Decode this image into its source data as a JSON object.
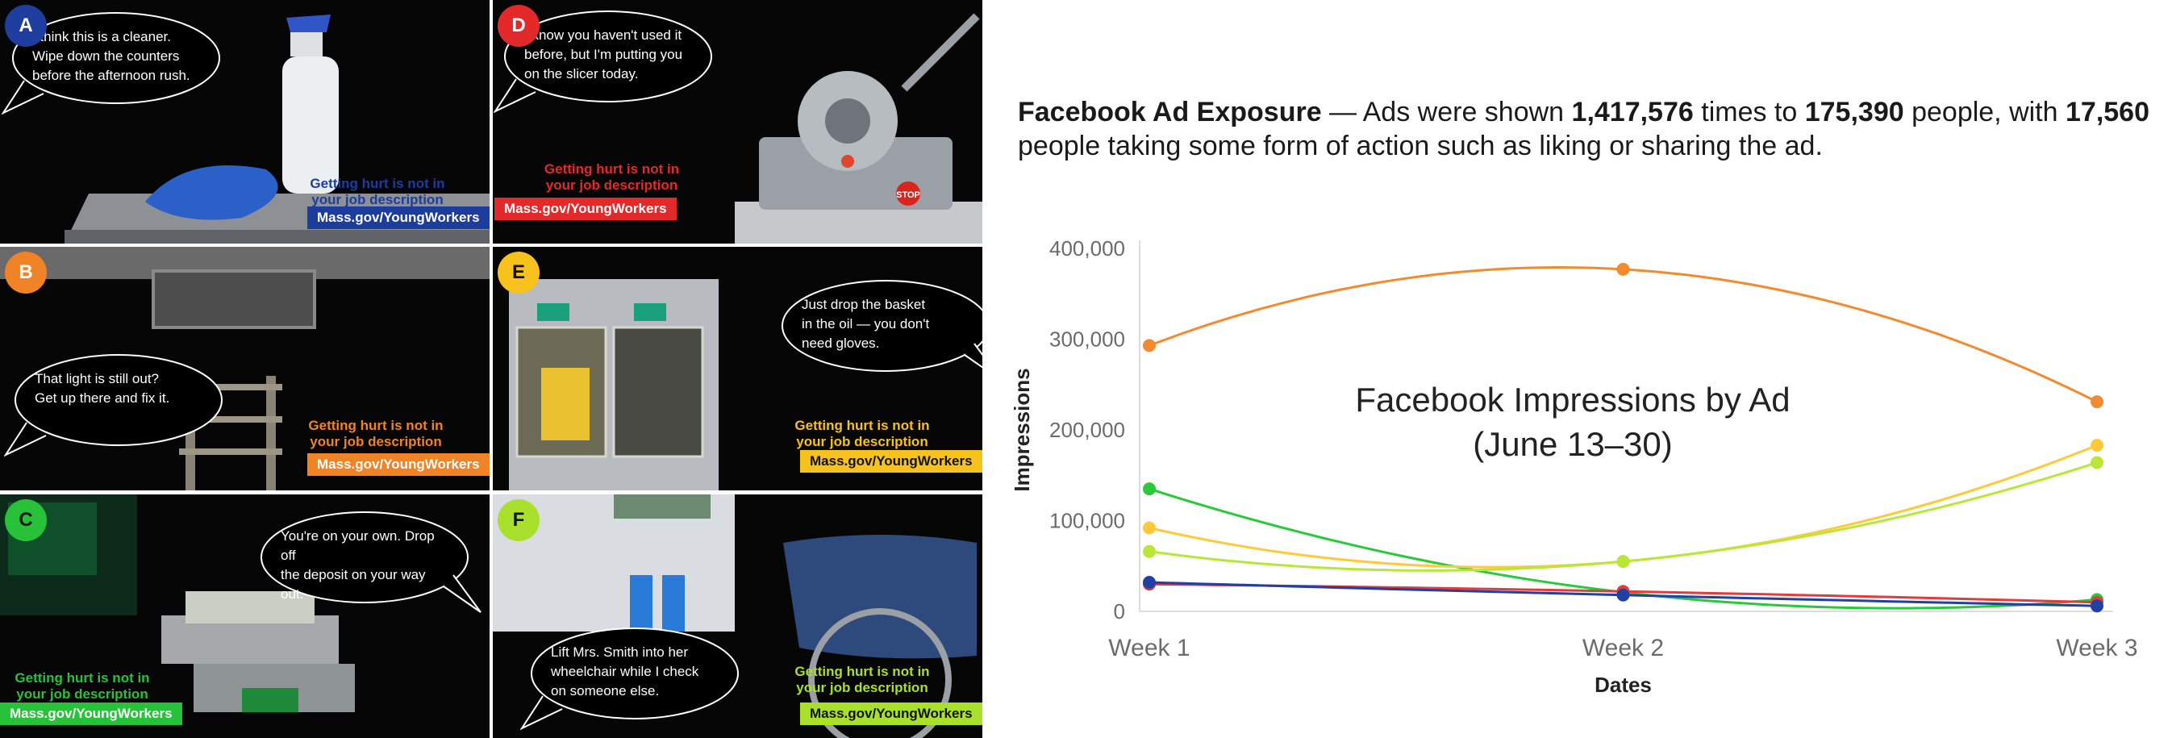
{
  "ads": [
    {
      "letter": "A",
      "badge_color": "#1f3fa0",
      "quote": "I think this is a cleaner.\nWipe down the counters\nbefore the afternoon rush.",
      "slogan": "Getting hurt is not in\nyour job description",
      "url": "Mass.gov/YoungWorkers",
      "accent": "#1c3d9c",
      "scene": "spray-bottle"
    },
    {
      "letter": "D",
      "badge_color": "#e22a2a",
      "quote": "I know you haven't used it\nbefore, but I'm putting you\non the slicer today.",
      "slogan": "Getting hurt is not in\nyour job description",
      "url": "Mass.gov/YoungWorkers",
      "accent": "#e22a2a",
      "scene": "meat-slicer",
      "stop_label": "STOP"
    },
    {
      "letter": "B",
      "badge_color": "#f08326",
      "quote": "That light is still out?\nGet up there and fix it.",
      "slogan": "Getting hurt is not in\nyour job description",
      "url": "Mass.gov/YoungWorkers",
      "accent": "#f08326",
      "scene": "ladder"
    },
    {
      "letter": "E",
      "badge_color": "#f7c21c",
      "quote": "Just drop the basket\nin the oil — you don't\nneed gloves.",
      "slogan": "Getting hurt is not in\nyour job description",
      "url": "Mass.gov/YoungWorkers",
      "accent": "#f7c21c",
      "scene": "fryer"
    },
    {
      "letter": "C",
      "badge_color": "#27c23a",
      "quote": "You're on your own. Drop off\nthe deposit on your way out.",
      "slogan": "Getting hurt is not in\nyour job description",
      "url": "Mass.gov/YoungWorkers",
      "accent": "#27c23a",
      "scene": "cash-register"
    },
    {
      "letter": "F",
      "badge_color": "#a9e02c",
      "quote": "Lift Mrs. Smith into her\nwheelchair while I check\non someone else.",
      "slogan": "Getting hurt is not in\nyour job description",
      "url": "Mass.gov/YoungWorkers",
      "accent": "#a9e02c",
      "scene": "wheelchair"
    }
  ],
  "headline": {
    "lead": "Facebook Ad Exposure",
    "t1": " — Ads were shown ",
    "impressions": "1,417,576",
    "t2": " times to ",
    "people": "175,390",
    "t3": " people, with ",
    "actions": "17,560",
    "t4": " people taking some form of action such as liking or sharing the ad."
  },
  "chart_data": {
    "type": "line",
    "title_line1": "Facebook Impressions by Ad",
    "title_line2": "(June 13–30)",
    "xlabel": "Dates",
    "ylabel": "Impressions",
    "categories": [
      "Week 1",
      "Week 2",
      "Week 3"
    ],
    "ylim": [
      0,
      400000
    ],
    "yticks": [
      0,
      100000,
      200000,
      300000,
      400000
    ],
    "ytick_labels": [
      "0",
      "100,000",
      "200,000",
      "300,000",
      "400,000"
    ],
    "smooth": true,
    "grid": false,
    "legend": "none",
    "series": [
      {
        "color": "#f28a30",
        "values": [
          293000,
          377000,
          231000
        ]
      },
      {
        "color": "#29c93a",
        "values": [
          135000,
          21000,
          13000
        ]
      },
      {
        "color": "#ffc93a",
        "values": [
          92000,
          55000,
          183000
        ]
      },
      {
        "color": "#b8e639",
        "values": [
          66000,
          55000,
          164000
        ]
      },
      {
        "color": "#e23b3b",
        "values": [
          30000,
          22000,
          10000
        ]
      },
      {
        "color": "#223fa3",
        "values": [
          32000,
          18000,
          6000
        ]
      }
    ]
  }
}
